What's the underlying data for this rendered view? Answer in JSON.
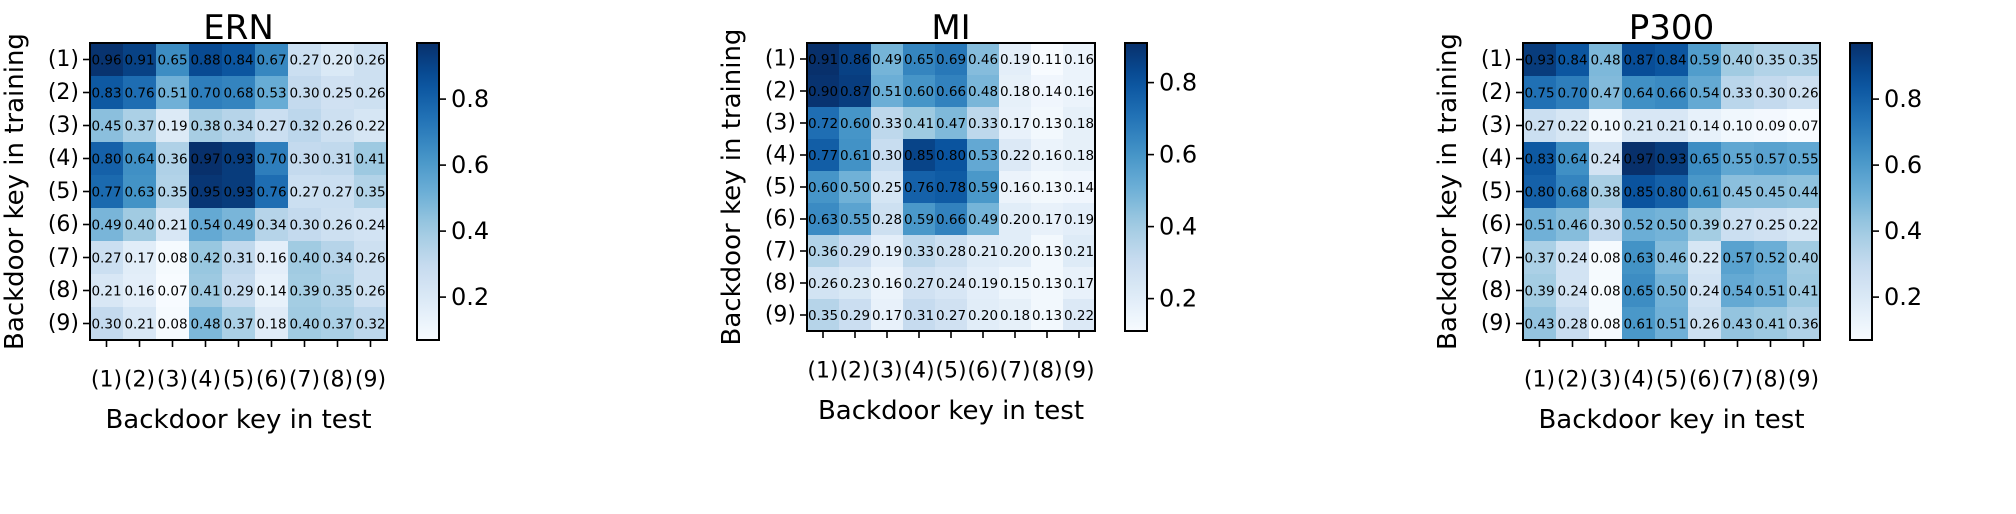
{
  "chart_data": [
    {
      "type": "heatmap",
      "title": "ERN",
      "xlabel": "Backdoor key in test",
      "ylabel": "Backdoor key in training",
      "x_categories": [
        "(1)",
        "(2)",
        "(3)",
        "(4)",
        "(5)",
        "(6)",
        "(7)",
        "(8)",
        "(9)"
      ],
      "y_categories": [
        "(1)",
        "(2)",
        "(3)",
        "(4)",
        "(5)",
        "(6)",
        "(7)",
        "(8)",
        "(9)"
      ],
      "values": [
        [
          0.96,
          0.91,
          0.65,
          0.88,
          0.84,
          0.67,
          0.27,
          0.2,
          0.26
        ],
        [
          0.83,
          0.76,
          0.51,
          0.7,
          0.68,
          0.53,
          0.3,
          0.25,
          0.26
        ],
        [
          0.45,
          0.37,
          0.19,
          0.38,
          0.34,
          0.27,
          0.32,
          0.26,
          0.22
        ],
        [
          0.8,
          0.64,
          0.36,
          0.97,
          0.93,
          0.7,
          0.3,
          0.31,
          0.41
        ],
        [
          0.77,
          0.63,
          0.35,
          0.95,
          0.93,
          0.76,
          0.27,
          0.27,
          0.35
        ],
        [
          0.49,
          0.4,
          0.21,
          0.54,
          0.49,
          0.34,
          0.3,
          0.26,
          0.24
        ],
        [
          0.27,
          0.17,
          0.08,
          0.42,
          0.31,
          0.16,
          0.4,
          0.34,
          0.26
        ],
        [
          0.21,
          0.16,
          0.07,
          0.41,
          0.29,
          0.14,
          0.39,
          0.35,
          0.26
        ],
        [
          0.3,
          0.21,
          0.08,
          0.48,
          0.37,
          0.18,
          0.4,
          0.37,
          0.32
        ]
      ],
      "colorbar": {
        "min": 0.07,
        "max": 0.97,
        "ticks": [
          0.2,
          0.4,
          0.6,
          0.8
        ],
        "tick_labels": [
          "0.2",
          "0.4",
          "0.6",
          "0.8"
        ]
      },
      "colormap": "Blues"
    },
    {
      "type": "heatmap",
      "title": "MI",
      "xlabel": "Backdoor key in test",
      "ylabel": "Backdoor key in training",
      "x_categories": [
        "(1)",
        "(2)",
        "(3)",
        "(4)",
        "(5)",
        "(6)",
        "(7)",
        "(8)",
        "(9)"
      ],
      "y_categories": [
        "(1)",
        "(2)",
        "(3)",
        "(4)",
        "(5)",
        "(6)",
        "(7)",
        "(8)",
        "(9)"
      ],
      "values": [
        [
          0.91,
          0.86,
          0.49,
          0.65,
          0.69,
          0.46,
          0.19,
          0.11,
          0.16
        ],
        [
          0.9,
          0.87,
          0.51,
          0.6,
          0.66,
          0.48,
          0.18,
          0.14,
          0.16
        ],
        [
          0.72,
          0.6,
          0.33,
          0.41,
          0.47,
          0.33,
          0.17,
          0.13,
          0.18
        ],
        [
          0.77,
          0.61,
          0.3,
          0.85,
          0.8,
          0.53,
          0.22,
          0.16,
          0.18
        ],
        [
          0.6,
          0.5,
          0.25,
          0.76,
          0.78,
          0.59,
          0.16,
          0.13,
          0.14
        ],
        [
          0.63,
          0.55,
          0.28,
          0.59,
          0.66,
          0.49,
          0.2,
          0.17,
          0.19
        ],
        [
          0.36,
          0.29,
          0.19,
          0.33,
          0.28,
          0.21,
          0.2,
          0.13,
          0.21
        ],
        [
          0.26,
          0.23,
          0.16,
          0.27,
          0.24,
          0.19,
          0.15,
          0.13,
          0.17
        ],
        [
          0.35,
          0.29,
          0.17,
          0.31,
          0.27,
          0.2,
          0.18,
          0.13,
          0.22
        ]
      ],
      "colorbar": {
        "min": 0.11,
        "max": 0.91,
        "ticks": [
          0.2,
          0.4,
          0.6,
          0.8
        ],
        "tick_labels": [
          "0.2",
          "0.4",
          "0.6",
          "0.8"
        ]
      },
      "colormap": "Blues"
    },
    {
      "type": "heatmap",
      "title": "P300",
      "xlabel": "Backdoor key in test",
      "ylabel": "Backdoor key in training",
      "x_categories": [
        "(1)",
        "(2)",
        "(3)",
        "(4)",
        "(5)",
        "(6)",
        "(7)",
        "(8)",
        "(9)"
      ],
      "y_categories": [
        "(1)",
        "(2)",
        "(3)",
        "(4)",
        "(5)",
        "(6)",
        "(7)",
        "(8)",
        "(9)"
      ],
      "values": [
        [
          0.93,
          0.84,
          0.48,
          0.87,
          0.84,
          0.59,
          0.4,
          0.35,
          0.35
        ],
        [
          0.75,
          0.7,
          0.47,
          0.64,
          0.66,
          0.54,
          0.33,
          0.3,
          0.26
        ],
        [
          0.27,
          0.22,
          0.1,
          0.21,
          0.21,
          0.14,
          0.1,
          0.09,
          0.07
        ],
        [
          0.83,
          0.64,
          0.24,
          0.97,
          0.93,
          0.65,
          0.55,
          0.57,
          0.55
        ],
        [
          0.8,
          0.68,
          0.38,
          0.85,
          0.8,
          0.61,
          0.45,
          0.45,
          0.44
        ],
        [
          0.51,
          0.46,
          0.3,
          0.52,
          0.5,
          0.39,
          0.27,
          0.25,
          0.22
        ],
        [
          0.37,
          0.24,
          0.08,
          0.63,
          0.46,
          0.22,
          0.57,
          0.52,
          0.4
        ],
        [
          0.39,
          0.24,
          0.08,
          0.65,
          0.5,
          0.24,
          0.54,
          0.51,
          0.41
        ],
        [
          0.43,
          0.28,
          0.08,
          0.61,
          0.51,
          0.26,
          0.43,
          0.41,
          0.36
        ]
      ],
      "colorbar": {
        "min": 0.07,
        "max": 0.97,
        "ticks": [
          0.2,
          0.4,
          0.6,
          0.8
        ],
        "tick_labels": [
          "0.2",
          "0.4",
          "0.6",
          "0.8"
        ]
      },
      "colormap": "Blues"
    }
  ]
}
